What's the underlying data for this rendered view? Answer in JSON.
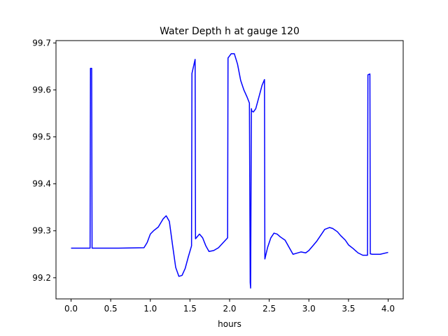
{
  "chart_data": {
    "type": "line",
    "title": "Water Depth h at gauge 120",
    "xlabel": "hours",
    "ylabel": "",
    "xlim": [
      -0.19,
      4.19
    ],
    "ylim": [
      99.155,
      99.705
    ],
    "xticks": [
      0.0,
      0.5,
      1.0,
      1.5,
      2.0,
      2.5,
      3.0,
      3.5,
      4.0
    ],
    "xtick_labels": [
      "0.0",
      "0.5",
      "1.0",
      "1.5",
      "2.0",
      "2.5",
      "3.0",
      "3.5",
      "4.0"
    ],
    "yticks": [
      99.2,
      99.3,
      99.4,
      99.5,
      99.6,
      99.7
    ],
    "ytick_labels": [
      "99.2",
      "99.3",
      "99.4",
      "99.5",
      "99.6",
      "99.7"
    ],
    "grid": false,
    "series": [
      {
        "color": "#0000ff",
        "x": [
          0.0,
          0.24,
          0.245,
          0.26,
          0.265,
          0.6,
          0.92,
          0.96,
          1.0,
          1.04,
          1.1,
          1.16,
          1.2,
          1.24,
          1.28,
          1.32,
          1.36,
          1.4,
          1.44,
          1.48,
          1.52,
          1.525,
          1.565,
          1.57,
          1.62,
          1.66,
          1.7,
          1.74,
          1.8,
          1.86,
          1.92,
          1.975,
          1.98,
          2.02,
          2.06,
          2.1,
          2.14,
          2.18,
          2.22,
          2.25,
          2.26,
          2.265,
          2.275,
          2.28,
          2.3,
          2.33,
          2.37,
          2.41,
          2.44,
          2.445,
          2.48,
          2.52,
          2.56,
          2.6,
          2.64,
          2.7,
          2.76,
          2.8,
          2.84,
          2.9,
          2.96,
          3.0,
          3.06,
          3.1,
          3.16,
          3.2,
          3.26,
          3.3,
          3.36,
          3.4,
          3.46,
          3.5,
          3.56,
          3.62,
          3.68,
          3.74,
          3.745,
          3.77,
          3.775,
          3.8,
          3.9,
          4.0
        ],
        "y": [
          99.263,
          99.263,
          99.646,
          99.646,
          99.263,
          99.263,
          99.264,
          99.275,
          99.293,
          99.3,
          99.308,
          99.325,
          99.332,
          99.32,
          99.27,
          99.222,
          99.203,
          99.205,
          99.22,
          99.245,
          99.268,
          99.635,
          99.665,
          99.283,
          99.293,
          99.285,
          99.268,
          99.256,
          99.258,
          99.264,
          99.275,
          99.285,
          99.668,
          99.677,
          99.677,
          99.655,
          99.62,
          99.6,
          99.585,
          99.572,
          99.19,
          99.178,
          99.56,
          99.555,
          99.553,
          99.56,
          99.585,
          99.61,
          99.622,
          99.24,
          99.265,
          99.285,
          99.295,
          99.293,
          99.287,
          99.28,
          99.262,
          99.25,
          99.252,
          99.255,
          99.253,
          99.258,
          99.27,
          99.278,
          99.293,
          99.303,
          99.307,
          99.305,
          99.298,
          99.29,
          99.28,
          99.27,
          99.262,
          99.253,
          99.248,
          99.248,
          99.632,
          99.634,
          99.251,
          99.25,
          99.25,
          99.254
        ]
      }
    ]
  }
}
